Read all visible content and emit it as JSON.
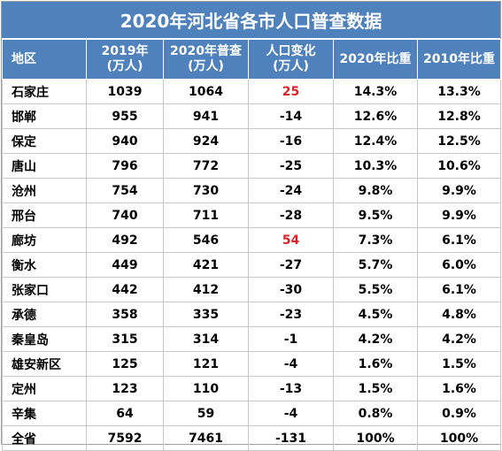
{
  "title": "2020年河北省各市人口普查数据",
  "headers": [
    {
      "line1": "地区",
      "line2": ""
    },
    {
      "line1": "2019年",
      "line2": "(万人)"
    },
    {
      "line1": "2020年普查",
      "line2": "(万人)"
    },
    {
      "line1": "人口变化",
      "line2": "(万人)"
    },
    {
      "line1": "2020年比重",
      "line2": ""
    },
    {
      "line1": "2010年比重",
      "line2": ""
    }
  ],
  "rows": [
    {
      "region": "石家庄",
      "y2019": "1039",
      "y2020": "1064",
      "change": "25",
      "share2020": "14.3%",
      "share2010": "13.3%",
      "positive": true
    },
    {
      "region": "邯郸",
      "y2019": "955",
      "y2020": "941",
      "change": "-14",
      "share2020": "12.6%",
      "share2010": "12.8%",
      "positive": false
    },
    {
      "region": "保定",
      "y2019": "940",
      "y2020": "924",
      "change": "-16",
      "share2020": "12.4%",
      "share2010": "12.5%",
      "positive": false
    },
    {
      "region": "唐山",
      "y2019": "796",
      "y2020": "772",
      "change": "-25",
      "share2020": "10.3%",
      "share2010": "10.6%",
      "positive": false
    },
    {
      "region": "沧州",
      "y2019": "754",
      "y2020": "730",
      "change": "-24",
      "share2020": "9.8%",
      "share2010": "9.9%",
      "positive": false
    },
    {
      "region": "邢台",
      "y2019": "740",
      "y2020": "711",
      "change": "-28",
      "share2020": "9.5%",
      "share2010": "9.9%",
      "positive": false
    },
    {
      "region": "廊坊",
      "y2019": "492",
      "y2020": "546",
      "change": "54",
      "share2020": "7.3%",
      "share2010": "6.1%",
      "positive": true
    },
    {
      "region": "衡水",
      "y2019": "449",
      "y2020": "421",
      "change": "-27",
      "share2020": "5.7%",
      "share2010": "6.0%",
      "positive": false
    },
    {
      "region": "张家口",
      "y2019": "442",
      "y2020": "412",
      "change": "-30",
      "share2020": "5.5%",
      "share2010": "6.1%",
      "positive": false
    },
    {
      "region": "承德",
      "y2019": "358",
      "y2020": "335",
      "change": "-23",
      "share2020": "4.5%",
      "share2010": "4.8%",
      "positive": false
    },
    {
      "region": "秦皇岛",
      "y2019": "315",
      "y2020": "314",
      "change": "-1",
      "share2020": "4.2%",
      "share2010": "4.2%",
      "positive": false
    },
    {
      "region": "雄安新区",
      "y2019": "125",
      "y2020": "121",
      "change": "-4",
      "share2020": "1.6%",
      "share2010": "1.5%",
      "positive": false
    },
    {
      "region": "定州",
      "y2019": "123",
      "y2020": "110",
      "change": "-13",
      "share2020": "1.5%",
      "share2010": "1.6%",
      "positive": false
    },
    {
      "region": "辛集",
      "y2019": "64",
      "y2020": "59",
      "change": "-4",
      "share2020": "0.8%",
      "share2010": "0.9%",
      "positive": false
    },
    {
      "region": "全省",
      "y2019": "7592",
      "y2020": "7461",
      "change": "-131",
      "share2020": "100%",
      "share2010": "100%",
      "positive": false
    }
  ],
  "colors": {
    "header_bg": "#4f81bd",
    "header_text": "#ffffff",
    "positive_change": "#d9232a",
    "grid": "#c8c8c8"
  }
}
